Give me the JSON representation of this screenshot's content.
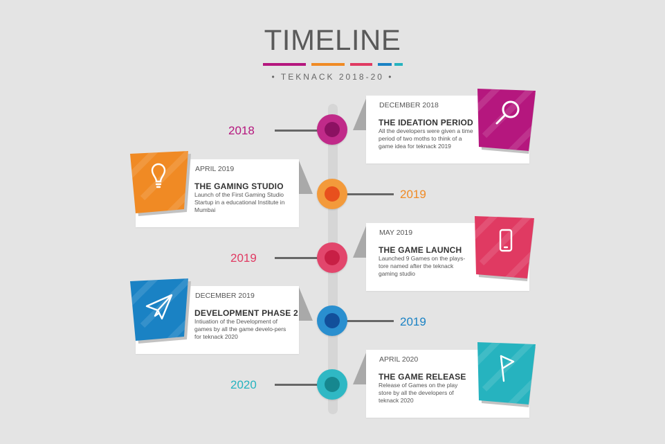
{
  "header": {
    "title": "TIMELINE",
    "subtitle": "• TEKNACK 2018-20 •",
    "bar_colors": [
      "#b5177e",
      "#f08a24",
      "#e03a62",
      "#1a82c4",
      "#26b3bf"
    ]
  },
  "events": [
    {
      "year": "2018",
      "date": "DECEMBER 2018",
      "title": "THE IDEATION PERIOD",
      "desc": "All the developers were given a time period of two moths to think of a game idea for teknack 2019",
      "icon": "search-icon",
      "color": "#b5177e"
    },
    {
      "year": "2019",
      "date": "APRIL 2019",
      "title": "THE GAMING STUDIO",
      "desc": "Launch of the First Gaming Studio Startup in a educational Institute in Mumbai",
      "icon": "lightbulb-icon",
      "color": "#f08a24"
    },
    {
      "year": "2019",
      "date": "MAY 2019",
      "title": "THE GAME LAUNCH",
      "desc": "Launched 9 Games on the plays-tore named after the teknack gaming studio",
      "icon": "smartphone-icon",
      "color": "#e03a62"
    },
    {
      "year": "2019",
      "date": "DECEMBER 2019",
      "title": "DEVELOPMENT PHASE 2",
      "desc": "Intiuation of the Development of games by all the game develo-pers for teknack 2020",
      "icon": "paper-plane-icon",
      "color": "#1a82c4"
    },
    {
      "year": "2020",
      "date": "APRIL 2020",
      "title": "THE GAME RELEASE",
      "desc": "Release of Games on the play store by all the developers of teknack 2020",
      "icon": "flag-icon",
      "color": "#26b3bf"
    }
  ]
}
